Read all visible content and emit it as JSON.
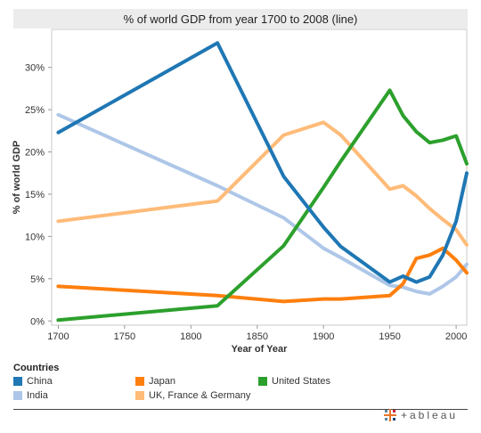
{
  "chart_data": {
    "type": "line",
    "title": "% of world GDP from year 1700 to 2008 (line)",
    "xlabel": "Year of Year",
    "ylabel": "% of world GDP",
    "xlim": [
      1695,
      2008
    ],
    "ylim": [
      -0.5,
      34.5
    ],
    "x_ticks": [
      1700,
      1750,
      1800,
      1850,
      1900,
      1950,
      2000
    ],
    "y_ticks": [
      0,
      5,
      10,
      15,
      20,
      25,
      30
    ],
    "y_tick_labels": [
      "0%",
      "5%",
      "10%",
      "15%",
      "20%",
      "25%",
      "30%"
    ],
    "grid": false,
    "legend_position": "bottom",
    "series": [
      {
        "name": "China",
        "color": "#1f77b4",
        "points": [
          [
            1700,
            22.3
          ],
          [
            1820,
            32.9
          ],
          [
            1870,
            17.1
          ],
          [
            1900,
            11.1
          ],
          [
            1913,
            8.8
          ],
          [
            1950,
            4.6
          ],
          [
            1960,
            5.3
          ],
          [
            1970,
            4.6
          ],
          [
            1980,
            5.2
          ],
          [
            1990,
            7.8
          ],
          [
            2000,
            11.8
          ],
          [
            2008,
            17.5
          ]
        ]
      },
      {
        "name": "Japan",
        "color": "#ff7f0e",
        "points": [
          [
            1700,
            4.1
          ],
          [
            1820,
            3.0
          ],
          [
            1870,
            2.3
          ],
          [
            1900,
            2.6
          ],
          [
            1913,
            2.6
          ],
          [
            1950,
            3.0
          ],
          [
            1960,
            4.4
          ],
          [
            1970,
            7.4
          ],
          [
            1980,
            7.8
          ],
          [
            1990,
            8.6
          ],
          [
            2000,
            7.2
          ],
          [
            2008,
            5.7
          ]
        ]
      },
      {
        "name": "United States",
        "color": "#2ca02c",
        "points": [
          [
            1700,
            0.1
          ],
          [
            1820,
            1.8
          ],
          [
            1870,
            8.9
          ],
          [
            1900,
            15.8
          ],
          [
            1913,
            18.9
          ],
          [
            1950,
            27.3
          ],
          [
            1960,
            24.3
          ],
          [
            1970,
            22.4
          ],
          [
            1980,
            21.1
          ],
          [
            1990,
            21.4
          ],
          [
            2000,
            21.9
          ],
          [
            2008,
            18.6
          ]
        ]
      },
      {
        "name": "India",
        "color": "#aec7e8",
        "points": [
          [
            1700,
            24.4
          ],
          [
            1820,
            16.0
          ],
          [
            1870,
            12.2
          ],
          [
            1900,
            8.6
          ],
          [
            1913,
            7.5
          ],
          [
            1950,
            4.2
          ],
          [
            1960,
            4.0
          ],
          [
            1970,
            3.5
          ],
          [
            1980,
            3.2
          ],
          [
            1990,
            4.1
          ],
          [
            2000,
            5.2
          ],
          [
            2008,
            6.7
          ]
        ]
      },
      {
        "name": "UK, France & Germany",
        "color": "#ffbb78",
        "points": [
          [
            1700,
            11.8
          ],
          [
            1820,
            14.2
          ],
          [
            1870,
            22.0
          ],
          [
            1900,
            23.5
          ],
          [
            1913,
            22.0
          ],
          [
            1950,
            15.6
          ],
          [
            1960,
            16.0
          ],
          [
            1970,
            14.8
          ],
          [
            1980,
            13.3
          ],
          [
            1990,
            12.0
          ],
          [
            2000,
            10.8
          ],
          [
            2008,
            9.0
          ]
        ]
      }
    ]
  },
  "legend": {
    "title": "Countries",
    "items": [
      {
        "label": "China",
        "color": "#1f77b4"
      },
      {
        "label": "Japan",
        "color": "#ff7f0e"
      },
      {
        "label": "United States",
        "color": "#2ca02c"
      },
      {
        "label": "India",
        "color": "#aec7e8"
      },
      {
        "label": "UK, France & Germany",
        "color": "#ffbb78"
      }
    ]
  },
  "branding": {
    "logo_text": "+ableau"
  }
}
